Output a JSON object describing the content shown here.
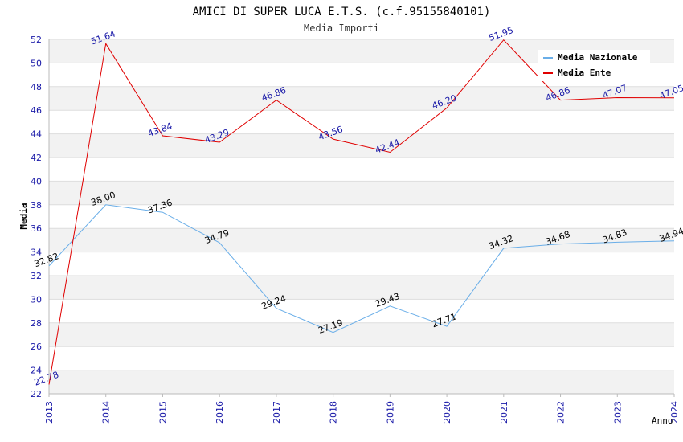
{
  "chart_data": {
    "type": "line",
    "title": "AMICI DI SUPER LUCA E.T.S. (c.f.95155840101)",
    "subtitle": "Media Importi",
    "xlabel": "Anno",
    "ylabel": "Media",
    "categories": [
      "2013",
      "2014",
      "2015",
      "2016",
      "2017",
      "2018",
      "2019",
      "2020",
      "2021",
      "2022",
      "2023",
      "2024"
    ],
    "ylim": [
      22,
      52
    ],
    "yticks": [
      22,
      24,
      26,
      28,
      30,
      32,
      34,
      36,
      38,
      40,
      42,
      44,
      46,
      48,
      50,
      52
    ],
    "legend_position": "top-right",
    "series": [
      {
        "name": "Media Nazionale",
        "color": "#6aaee8",
        "label_color": "#000000",
        "values": [
          32.82,
          38.0,
          37.36,
          34.79,
          29.24,
          27.19,
          29.43,
          27.71,
          34.32,
          34.68,
          34.83,
          34.94
        ],
        "labels": [
          "32.82",
          "38.00",
          "37.36",
          "34.79",
          "29.24",
          "27.19",
          "29.43",
          "27.71",
          "34.32",
          "34.68",
          "34.83",
          "34.94"
        ]
      },
      {
        "name": "Media Ente",
        "color": "#e00000",
        "label_color": "#1a1aa8",
        "values": [
          22.78,
          51.64,
          43.84,
          43.29,
          46.86,
          43.56,
          42.44,
          46.2,
          51.95,
          46.86,
          47.07,
          47.05
        ],
        "labels": [
          "22.78",
          "51.64",
          "43.84",
          "43.29",
          "46.86",
          "43.56",
          "42.44",
          "46.20",
          "51.95",
          "46.86",
          "47.07",
          "47.05"
        ]
      }
    ],
    "colors": {
      "axis_tick_text": "#1a1aa8",
      "band": "#f2f2f2",
      "grid": "#dddddd"
    }
  }
}
